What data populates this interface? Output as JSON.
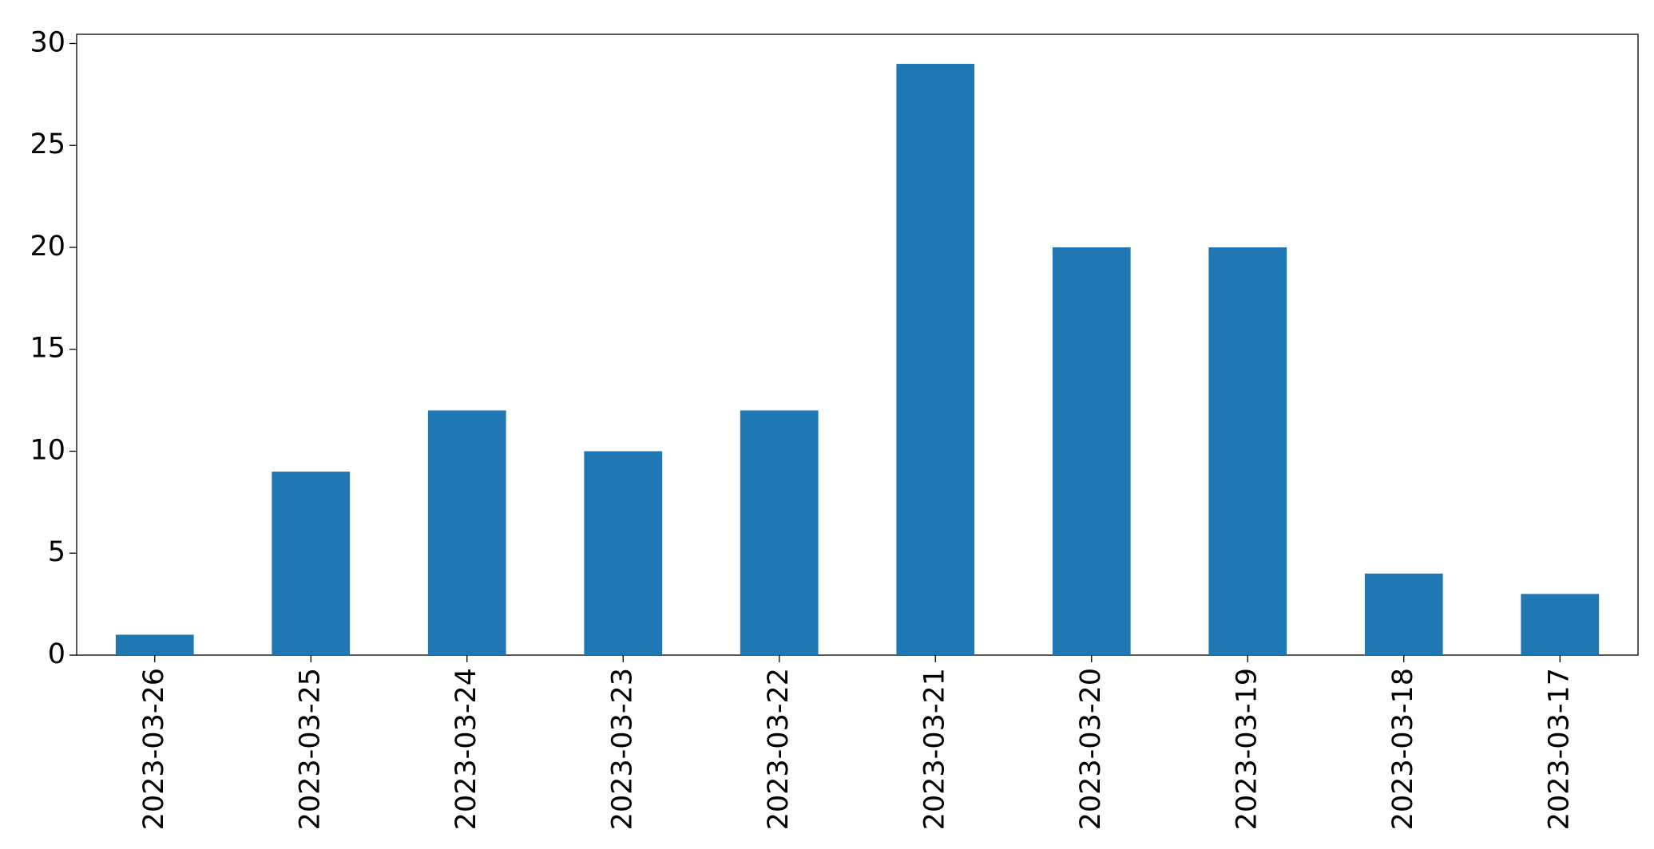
{
  "chart_data": {
    "type": "bar",
    "categories": [
      "2023-03-26",
      "2023-03-25",
      "2023-03-24",
      "2023-03-23",
      "2023-03-22",
      "2023-03-21",
      "2023-03-20",
      "2023-03-19",
      "2023-03-18",
      "2023-03-17"
    ],
    "values": [
      1,
      9,
      12,
      10,
      12,
      29,
      20,
      20,
      4,
      3
    ],
    "color": "#1f77b4",
    "ylim": [
      0,
      30.45
    ],
    "yticks": [
      0,
      5,
      10,
      15,
      20,
      25,
      30
    ],
    "grid": false
  }
}
